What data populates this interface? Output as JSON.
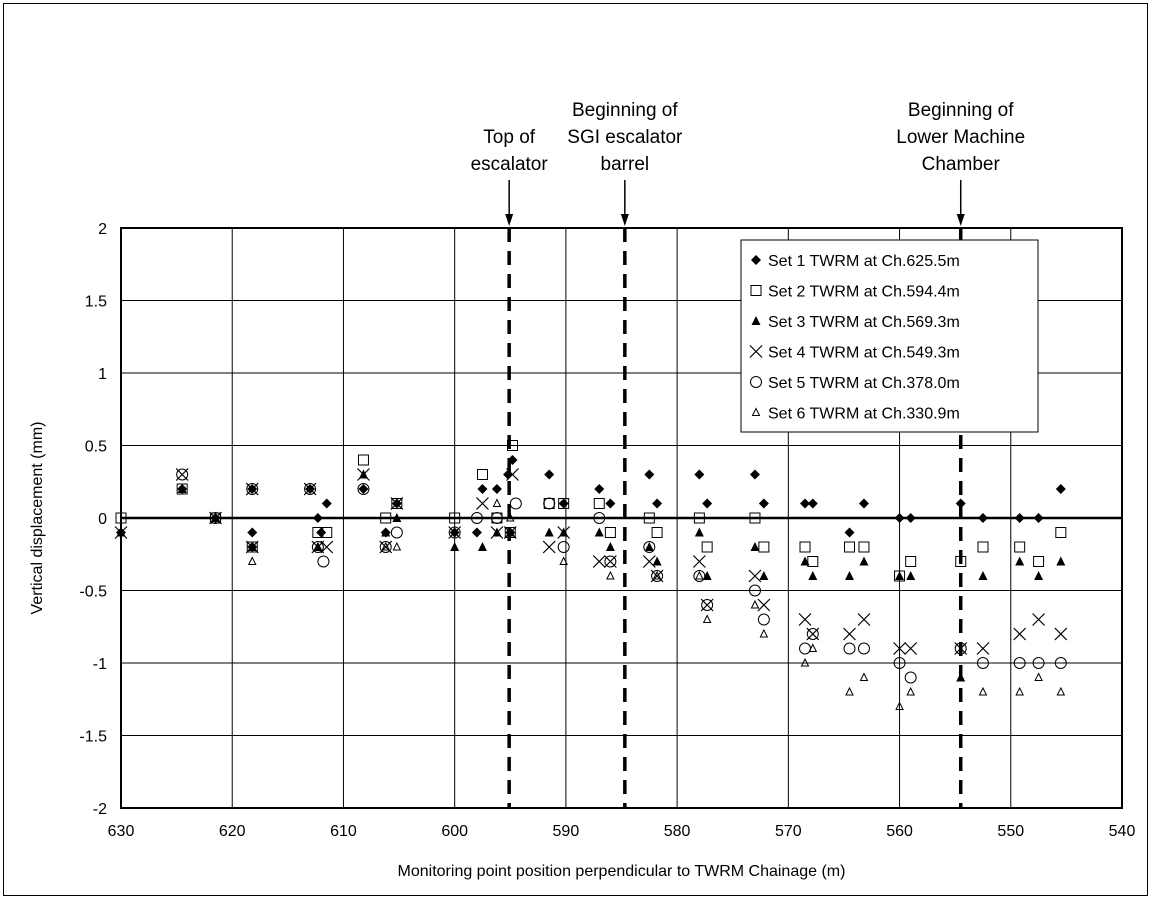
{
  "chart_data": {
    "type": "scatter",
    "xlabel": "Monitoring point position perpendicular to TWRM Chainage (m)",
    "ylabel": "Vertical displacement (mm)",
    "xlim": [
      630,
      540
    ],
    "x_reversed": true,
    "ylim": [
      -2,
      2
    ],
    "x_ticks": [
      "630",
      "620",
      "610",
      "600",
      "590",
      "580",
      "570",
      "560",
      "550",
      "540"
    ],
    "y_ticks": [
      "2",
      "1.5",
      "1",
      "0.5",
      "0",
      "-0.5",
      "-1",
      "-1.5",
      "-2"
    ],
    "grid": true,
    "legend_position": "top-right",
    "annotations": [
      {
        "x": 595.1,
        "lines": [
          "Top of",
          "escalator"
        ]
      },
      {
        "x": 584.7,
        "lines": [
          "Beginning of",
          "SGI escalator",
          "barrel"
        ]
      },
      {
        "x": 554.5,
        "lines": [
          "Beginning of",
          "Lower Machine",
          "Chamber"
        ]
      }
    ],
    "series": [
      {
        "name": "Set 1 TWRM at Ch.625.5m",
        "marker": "diamond",
        "points": [
          [
            630,
            -0.1
          ],
          [
            624.5,
            0.2
          ],
          [
            621.5,
            0
          ],
          [
            618.2,
            0.2
          ],
          [
            618.2,
            -0.1
          ],
          [
            618.2,
            -0.2
          ],
          [
            613,
            0.2
          ],
          [
            612.3,
            0
          ],
          [
            612,
            -0.1
          ],
          [
            611.5,
            0.1
          ],
          [
            606.2,
            -0.1
          ],
          [
            605.2,
            0.1
          ],
          [
            608.2,
            0.2
          ],
          [
            600,
            -0.1
          ],
          [
            598,
            -0.1
          ],
          [
            597.5,
            0.2
          ],
          [
            596.2,
            0.2
          ],
          [
            595.2,
            0.3
          ],
          [
            594.8,
            0.4
          ],
          [
            595,
            -0.1
          ],
          [
            591.5,
            0.3
          ],
          [
            590.2,
            0.1
          ],
          [
            587,
            0.2
          ],
          [
            586,
            0.1
          ],
          [
            582.5,
            0.3
          ],
          [
            581.8,
            0.1
          ],
          [
            578,
            0.3
          ],
          [
            577.3,
            0.1
          ],
          [
            573,
            0.3
          ],
          [
            572.2,
            0.1
          ],
          [
            568.5,
            0.1
          ],
          [
            567.8,
            0.1
          ],
          [
            564.5,
            -0.1
          ],
          [
            563.2,
            0.1
          ],
          [
            560,
            0
          ],
          [
            559,
            0
          ],
          [
            554.5,
            0.1
          ],
          [
            552.5,
            0
          ],
          [
            549.2,
            0
          ],
          [
            547.5,
            0
          ],
          [
            545.5,
            0.2
          ]
        ]
      },
      {
        "name": "Set 2 TWRM at Ch.594.4m",
        "marker": "square",
        "points": [
          [
            630,
            0
          ],
          [
            624.5,
            0.2
          ],
          [
            621.5,
            0
          ],
          [
            618.2,
            -0.2
          ],
          [
            612.3,
            -0.1
          ],
          [
            611.5,
            -0.1
          ],
          [
            608.2,
            0.4
          ],
          [
            606.2,
            0
          ],
          [
            605.2,
            0.1
          ],
          [
            600,
            0
          ],
          [
            597.5,
            0.3
          ],
          [
            596.2,
            0
          ],
          [
            594.8,
            0.5
          ],
          [
            595,
            -0.1
          ],
          [
            591.5,
            0.1
          ],
          [
            590.2,
            0.1
          ],
          [
            587,
            0.1
          ],
          [
            586,
            -0.1
          ],
          [
            582.5,
            0
          ],
          [
            581.8,
            -0.1
          ],
          [
            578,
            0
          ],
          [
            577.3,
            -0.2
          ],
          [
            573,
            0
          ],
          [
            572.2,
            -0.2
          ],
          [
            568.5,
            -0.2
          ],
          [
            567.8,
            -0.3
          ],
          [
            564.5,
            -0.2
          ],
          [
            563.2,
            -0.2
          ],
          [
            560,
            -0.4
          ],
          [
            559,
            -0.3
          ],
          [
            554.5,
            -0.3
          ],
          [
            552.5,
            -0.2
          ],
          [
            549.2,
            -0.2
          ],
          [
            547.5,
            -0.3
          ],
          [
            545.5,
            -0.1
          ]
        ]
      },
      {
        "name": "Set 3 TWRM at Ch.569.3m",
        "marker": "triangle-filled",
        "points": [
          [
            630,
            -0.1
          ],
          [
            624.5,
            0.2
          ],
          [
            621.5,
            0
          ],
          [
            618.2,
            -0.2
          ],
          [
            612.3,
            -0.2
          ],
          [
            608.2,
            0.3
          ],
          [
            606.2,
            -0.1
          ],
          [
            605.2,
            0
          ],
          [
            600,
            -0.2
          ],
          [
            597.5,
            -0.2
          ],
          [
            596.2,
            -0.1
          ],
          [
            595,
            -0.1
          ],
          [
            591.5,
            -0.1
          ],
          [
            590.2,
            -0.1
          ],
          [
            587,
            -0.1
          ],
          [
            586,
            -0.2
          ],
          [
            582.5,
            -0.2
          ],
          [
            581.8,
            -0.3
          ],
          [
            578,
            -0.1
          ],
          [
            577.3,
            -0.4
          ],
          [
            573,
            -0.2
          ],
          [
            572.2,
            -0.4
          ],
          [
            568.5,
            -0.3
          ],
          [
            567.8,
            -0.4
          ],
          [
            564.5,
            -0.4
          ],
          [
            563.2,
            -0.3
          ],
          [
            560,
            -0.4
          ],
          [
            559,
            -0.4
          ],
          [
            554.5,
            -1.1
          ],
          [
            552.5,
            -0.4
          ],
          [
            549.2,
            -0.3
          ],
          [
            547.5,
            -0.4
          ],
          [
            545.5,
            -0.3
          ]
        ]
      },
      {
        "name": "Set 4 TWRM at Ch.549.3m",
        "marker": "x",
        "points": [
          [
            630,
            -0.1
          ],
          [
            624.5,
            0.3
          ],
          [
            621.5,
            0
          ],
          [
            618.2,
            0.2
          ],
          [
            618.2,
            -0.2
          ],
          [
            613,
            0.2
          ],
          [
            612.3,
            -0.2
          ],
          [
            611.5,
            -0.2
          ],
          [
            608.2,
            0.3
          ],
          [
            606.2,
            -0.2
          ],
          [
            605.2,
            0.1
          ],
          [
            600,
            -0.1
          ],
          [
            597.5,
            0.1
          ],
          [
            596.2,
            -0.1
          ],
          [
            595,
            -0.1
          ],
          [
            594.8,
            0.3
          ],
          [
            591.5,
            -0.2
          ],
          [
            590.2,
            -0.1
          ],
          [
            587,
            -0.3
          ],
          [
            586,
            -0.3
          ],
          [
            582.5,
            -0.3
          ],
          [
            581.8,
            -0.4
          ],
          [
            578,
            -0.3
          ],
          [
            577.3,
            -0.6
          ],
          [
            573,
            -0.4
          ],
          [
            572.2,
            -0.6
          ],
          [
            568.5,
            -0.7
          ],
          [
            567.8,
            -0.8
          ],
          [
            564.5,
            -0.8
          ],
          [
            563.2,
            -0.7
          ],
          [
            560,
            -0.9
          ],
          [
            559,
            -0.9
          ],
          [
            554.5,
            -0.9
          ],
          [
            552.5,
            -0.9
          ],
          [
            549.2,
            -0.8
          ],
          [
            547.5,
            -0.7
          ],
          [
            545.5,
            -0.8
          ]
        ]
      },
      {
        "name": "Set 5 TWRM at Ch.378.0m",
        "marker": "circle",
        "points": [
          [
            624.5,
            0.3
          ],
          [
            621.5,
            0
          ],
          [
            618.2,
            0.2
          ],
          [
            613,
            0.2
          ],
          [
            612.3,
            -0.2
          ],
          [
            611.8,
            -0.3
          ],
          [
            608.2,
            0.2
          ],
          [
            606.2,
            -0.2
          ],
          [
            605.2,
            -0.1
          ],
          [
            600,
            -0.1
          ],
          [
            598,
            0
          ],
          [
            596.2,
            0
          ],
          [
            594.5,
            0.1
          ],
          [
            591.5,
            0.1
          ],
          [
            590.2,
            -0.2
          ],
          [
            587,
            0
          ],
          [
            586,
            -0.3
          ],
          [
            582.5,
            -0.2
          ],
          [
            581.8,
            -0.4
          ],
          [
            578,
            -0.4
          ],
          [
            577.3,
            -0.6
          ],
          [
            573,
            -0.5
          ],
          [
            572.2,
            -0.7
          ],
          [
            568.5,
            -0.9
          ],
          [
            567.8,
            -0.8
          ],
          [
            564.5,
            -0.9
          ],
          [
            563.2,
            -0.9
          ],
          [
            560,
            -1
          ],
          [
            559,
            -1.1
          ],
          [
            554.5,
            -0.9
          ],
          [
            552.5,
            -1
          ],
          [
            549.2,
            -1
          ],
          [
            547.5,
            -1
          ],
          [
            545.5,
            -1
          ]
        ]
      },
      {
        "name": "Set 6 TWRM at Ch.330.9m",
        "marker": "triangle-open",
        "points": [
          [
            618.2,
            -0.3
          ],
          [
            612.3,
            -0.2
          ],
          [
            606.2,
            -0.2
          ],
          [
            605.2,
            -0.2
          ],
          [
            596.2,
            0.1
          ],
          [
            595,
            0
          ],
          [
            590.2,
            -0.3
          ],
          [
            586,
            -0.4
          ],
          [
            581.8,
            -0.4
          ],
          [
            578,
            -0.4
          ],
          [
            577.3,
            -0.7
          ],
          [
            573,
            -0.6
          ],
          [
            572.2,
            -0.8
          ],
          [
            568.5,
            -1
          ],
          [
            567.8,
            -0.9
          ],
          [
            564.5,
            -1.2
          ],
          [
            563.2,
            -1.1
          ],
          [
            560,
            -1.3
          ],
          [
            559,
            -1.2
          ],
          [
            552.5,
            -1.2
          ],
          [
            549.2,
            -1.2
          ],
          [
            547.5,
            -1.1
          ],
          [
            545.5,
            -1.2
          ]
        ]
      }
    ]
  }
}
